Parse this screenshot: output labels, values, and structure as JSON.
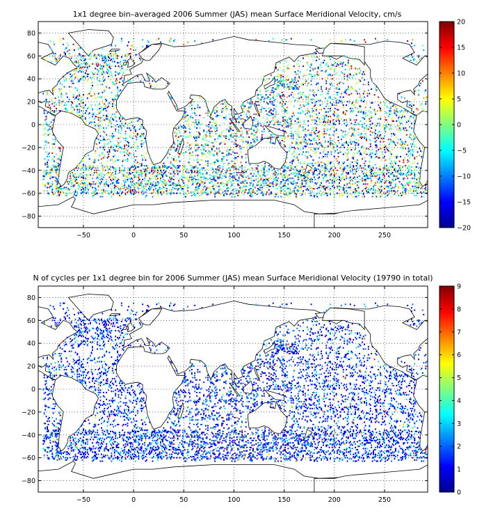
{
  "chart_data": [
    {
      "type": "heatmap",
      "title": "1x1 degree bin–averaged 2006 Summer (JAS) mean Surface Meridional Velocity, cm/s",
      "xlim": [
        -95,
        293
      ],
      "ylim": [
        -90,
        90
      ],
      "x_ticks": [
        -50,
        0,
        50,
        100,
        150,
        200,
        250
      ],
      "y_ticks": [
        80,
        60,
        40,
        20,
        0,
        -20,
        -40,
        -60,
        -80
      ],
      "grid": "dotted",
      "colormap": "jet",
      "colorbar": {
        "min": -20,
        "max": 20,
        "ticks": [
          20,
          15,
          10,
          5,
          0,
          -5,
          -10,
          -15,
          -20
        ],
        "placement": "right"
      },
      "bin_size_deg": 1,
      "data_description": "scattered 1x1 degree bins over the world ocean, values spanning -20 to 20 cm/s"
    },
    {
      "type": "heatmap",
      "title": "N of cycles per 1x1 degree bin for 2006 Summer (JAS) mean Surface Meridional Velocity (19790 in total)",
      "xlim": [
        -95,
        293
      ],
      "ylim": [
        -90,
        90
      ],
      "x_ticks": [
        -50,
        0,
        50,
        100,
        150,
        200,
        250
      ],
      "y_ticks": [
        80,
        60,
        40,
        20,
        0,
        -20,
        -40,
        -60,
        -80
      ],
      "grid": "dotted",
      "colormap": "jet",
      "colorbar": {
        "min": 0,
        "max": 9,
        "ticks": [
          9,
          8,
          7,
          6,
          5,
          4,
          3,
          2,
          1,
          0
        ],
        "placement": "right"
      },
      "bin_size_deg": 1,
      "total_cycles": 19790,
      "data_description": "scattered 1x1 degree bins, most bins with 1-2 cycles, a few up to 9"
    }
  ]
}
